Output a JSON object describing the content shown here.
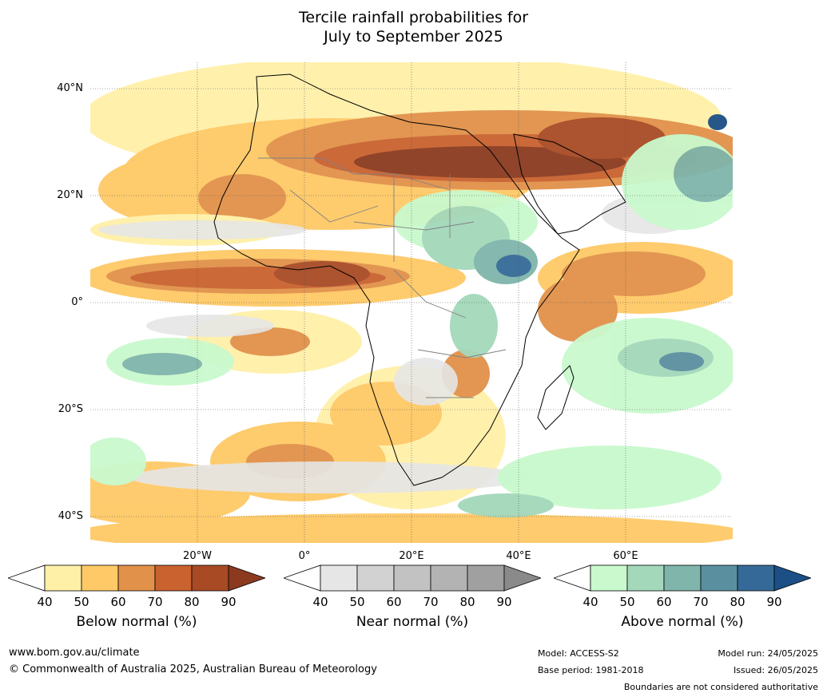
{
  "title": {
    "line1": "Tercile rainfall probabilities for",
    "line2": "July to September 2025"
  },
  "latitude_labels": [
    "40°N",
    "20°N",
    "0°",
    "20°S",
    "40°S"
  ],
  "longitude_labels": [
    "20°W",
    "0°",
    "20°E",
    "40°E",
    "60°E"
  ],
  "colorbars": [
    {
      "title": "Below normal (%)",
      "ticks": [
        "40",
        "50",
        "60",
        "70",
        "80",
        "90"
      ],
      "colors": [
        "#ffffff",
        "#fff0a8",
        "#fec966",
        "#e19149",
        "#c9622f",
        "#a84a24",
        "#8b3a1f"
      ]
    },
    {
      "title": "Near normal (%)",
      "ticks": [
        "40",
        "50",
        "60",
        "70",
        "80",
        "90"
      ],
      "colors": [
        "#ffffff",
        "#e6e6e6",
        "#d2d2d2",
        "#c2c2c2",
        "#b2b3b2",
        "#a0a0a0",
        "#8a8a8a"
      ]
    },
    {
      "title": "Above normal (%)",
      "ticks": [
        "40",
        "50",
        "60",
        "70",
        "80",
        "90"
      ],
      "colors": [
        "#ffffff",
        "#c9f9cd",
        "#a3d8ba",
        "#7fb5aa",
        "#5a8f9f",
        "#356a98",
        "#1c4f86"
      ]
    }
  ],
  "footer": {
    "website": "www.bom.gov.au/climate",
    "copyright": "© Commonwealth of Australia 2025, Australian Bureau of Meteorology",
    "model": "Model: ACCESS-S2",
    "base_period": "Base period: 1981-2018",
    "model_run": "Model run: 24/05/2025",
    "issued": "Issued: 26/05/2025",
    "boundaries_note": "Boundaries are not considered authoritative"
  }
}
